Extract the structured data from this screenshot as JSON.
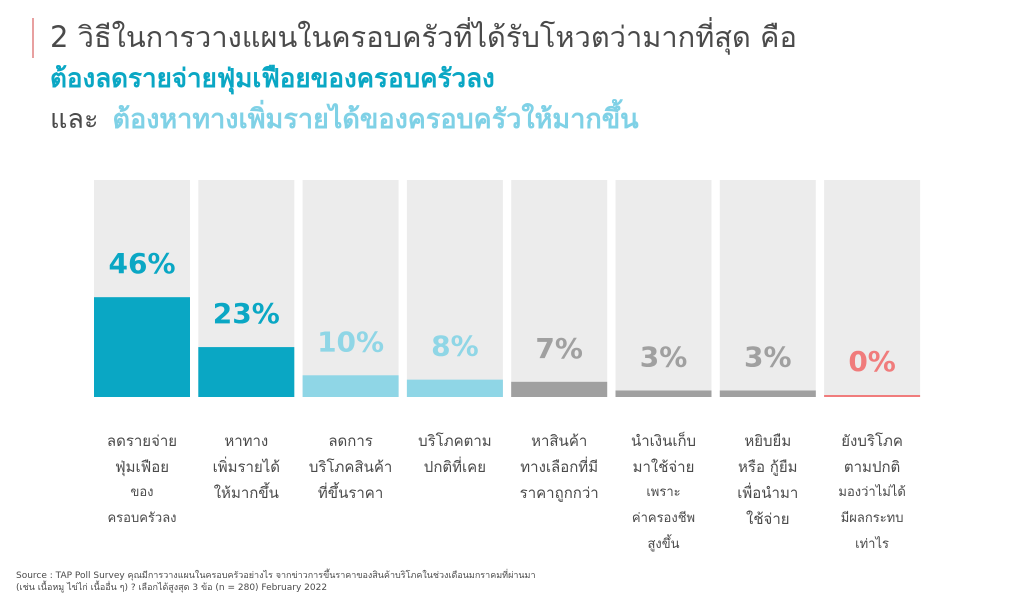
{
  "title": {
    "line1": "2 วิธีในการวางแผนในครอบครัวที่ได้รับโหวตว่ามากที่สุด คือ",
    "line2": "ต้องลดรายจ่ายฟุ่มเฟือยของครอบครัวลง",
    "line3_prefix": "และ",
    "line3_highlight": "ต้องหาทางเพิ่มรายได้ของครอบครัวให้มากขึ้น"
  },
  "chart_data": {
    "type": "bar",
    "ylim": [
      0,
      100
    ],
    "categories": [
      {
        "lines": [
          "ลดรายจ่าย",
          "ฟุ่มเฟือย",
          "ของ",
          "ครอบครัวลง"
        ],
        "small": [
          false,
          false,
          true,
          true
        ]
      },
      {
        "lines": [
          "หาทาง",
          "เพิ่มรายได้",
          "ให้มากขึ้น"
        ],
        "small": [
          false,
          false,
          false
        ]
      },
      {
        "lines": [
          "ลดการ",
          "บริโภคสินค้า",
          "ที่ขึ้นราคา"
        ],
        "small": [
          false,
          false,
          false
        ]
      },
      {
        "lines": [
          "บริโภคตาม",
          "ปกติที่เคย"
        ],
        "small": [
          false,
          false
        ]
      },
      {
        "lines": [
          "หาสินค้า",
          "ทางเลือกที่มี",
          "ราคาถูกกว่า"
        ],
        "small": [
          false,
          false,
          false
        ]
      },
      {
        "lines": [
          "นำเงินเก็บ",
          "มาใช้จ่าย",
          "เพราะ",
          "ค่าครองชีพ",
          "สูงขึ้น"
        ],
        "small": [
          false,
          false,
          true,
          true,
          true
        ]
      },
      {
        "lines": [
          "หยิบยืม",
          "หรือ กู้ยืม",
          "เพื่อนำมา",
          "ใช้จ่าย"
        ],
        "small": [
          false,
          false,
          false,
          false
        ]
      },
      {
        "lines": [
          "ยังบริโภค",
          "ตามปกติ",
          "มองว่าไม่ได้",
          "มีผลกระทบ",
          "เท่าไร"
        ],
        "small": [
          false,
          false,
          true,
          true,
          true
        ]
      }
    ],
    "values": [
      46,
      23,
      10,
      8,
      7,
      3,
      3,
      0
    ],
    "value_labels": [
      "46%",
      "23%",
      "10%",
      "8%",
      "7%",
      "3%",
      "3%",
      "0%"
    ],
    "bar_colors": [
      "#0aa7c4",
      "#0aa7c4",
      "#8fd6e6",
      "#8fd6e6",
      "#a0a0a0",
      "#a0a0a0",
      "#a0a0a0",
      "#f07c7c"
    ],
    "track_color": "#ececec"
  },
  "source": {
    "line1": "Source : TAP Poll Survey คุณมีการวางแผนในครอบครัวอย่างไร จากข่าวการขึ้นราคาของสินค้าบริโภคในช่วงเดือนมกราคมที่ผ่านมา",
    "line2": "(เช่น เนื้อหมู ไข่ไก่ เนื้ออื่น ๆ) ? เลือกได้สูงสุด 3 ข้อ (n = 280) February 2022"
  }
}
